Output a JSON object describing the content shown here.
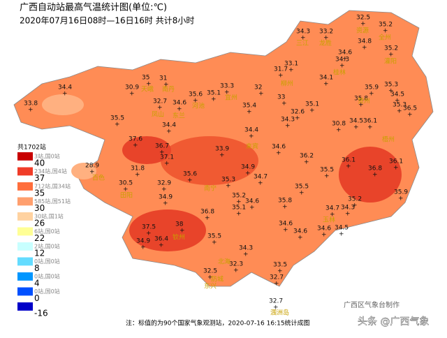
{
  "header": {
    "title": "广西自动站最高气温统计图(单位:℃)",
    "subtitle": "2020年07月16日08时—16日16时  共计8小时"
  },
  "legend": {
    "total": "共1702站",
    "levels": [
      {
        "label": "40",
        "count": "3站,国0站",
        "color": "#c80000"
      },
      {
        "label": "37",
        "count": "234站,国4站",
        "color": "#f03c28"
      },
      {
        "label": "35",
        "count": "712站,国34站",
        "color": "#ff6e3c"
      },
      {
        "label": "30",
        "count": "585站,国51站",
        "color": "#ff9f6e"
      },
      {
        "label": "26",
        "count": "30站,国1站",
        "color": "#ffd2a0"
      },
      {
        "label": "22",
        "count": "6站,国0站",
        "color": "#ffff96"
      },
      {
        "label": "12",
        "count": "2站,国0站",
        "color": "#c8ffff"
      },
      {
        "label": "8",
        "count": "0站,国0站",
        "color": "#64dcff"
      },
      {
        "label": "4",
        "count": "0站,国0站",
        "color": "#0096ff"
      },
      {
        "label": "0",
        "count": "0站,国0站",
        "color": "#0050ff"
      },
      {
        "label": "-16",
        "count": "",
        "color": "#0000c8"
      }
    ]
  },
  "stations": [
    34.3,
    33.2,
    32.5,
    35.2,
    34.8,
    35.2,
    34.6,
    34.3,
    33.1,
    31.7,
    34.1,
    35.9,
    35.3,
    34.5,
    35.8,
    36.5,
    35.3,
    30.9,
    35,
    31,
    34.4,
    33.8,
    33.3,
    32,
    33,
    35.1,
    35.6,
    35.1,
    32.6,
    35.4,
    32.7,
    34.6,
    35.5,
    34.4,
    34.3,
    34.4,
    30.8,
    34.5,
    36.1,
    37.6,
    36.7,
    37.1,
    33.9,
    34.6,
    36.2,
    36.1,
    36.8,
    36.1,
    28.9,
    31.8,
    34.9,
    35.6,
    35.3,
    34.7,
    35.5,
    30.5,
    32.9,
    35.5,
    35.9,
    34.9,
    35.2,
    34.6,
    35.8,
    35.2,
    34.7,
    34.3,
    35.1,
    36.8,
    38,
    37.5,
    34.6,
    34.6,
    34.5,
    34.6,
    35.5,
    34.9,
    36.4,
    34.3,
    32.3,
    32.5,
    33.5,
    32.7,
    32.7
  ],
  "places": [
    "三江",
    "龙胜",
    "资源",
    "全州",
    "灌阳",
    "桂林",
    "天峨",
    "南丹",
    "凤山",
    "东兰",
    "河池",
    "宜州",
    "柳州",
    "来宾",
    "百色",
    "田阳",
    "南宁",
    "钦州",
    "北海",
    "防城",
    "东兴",
    "玉林",
    "梧州",
    "贺州",
    "涠洲岛"
  ],
  "footer": {
    "note": "注：标值的为90个国家气象观测站，2020-07-16 16:15统计成图",
    "credit": "广西区气象台制作",
    "watermark": "头条 @广西气象"
  }
}
